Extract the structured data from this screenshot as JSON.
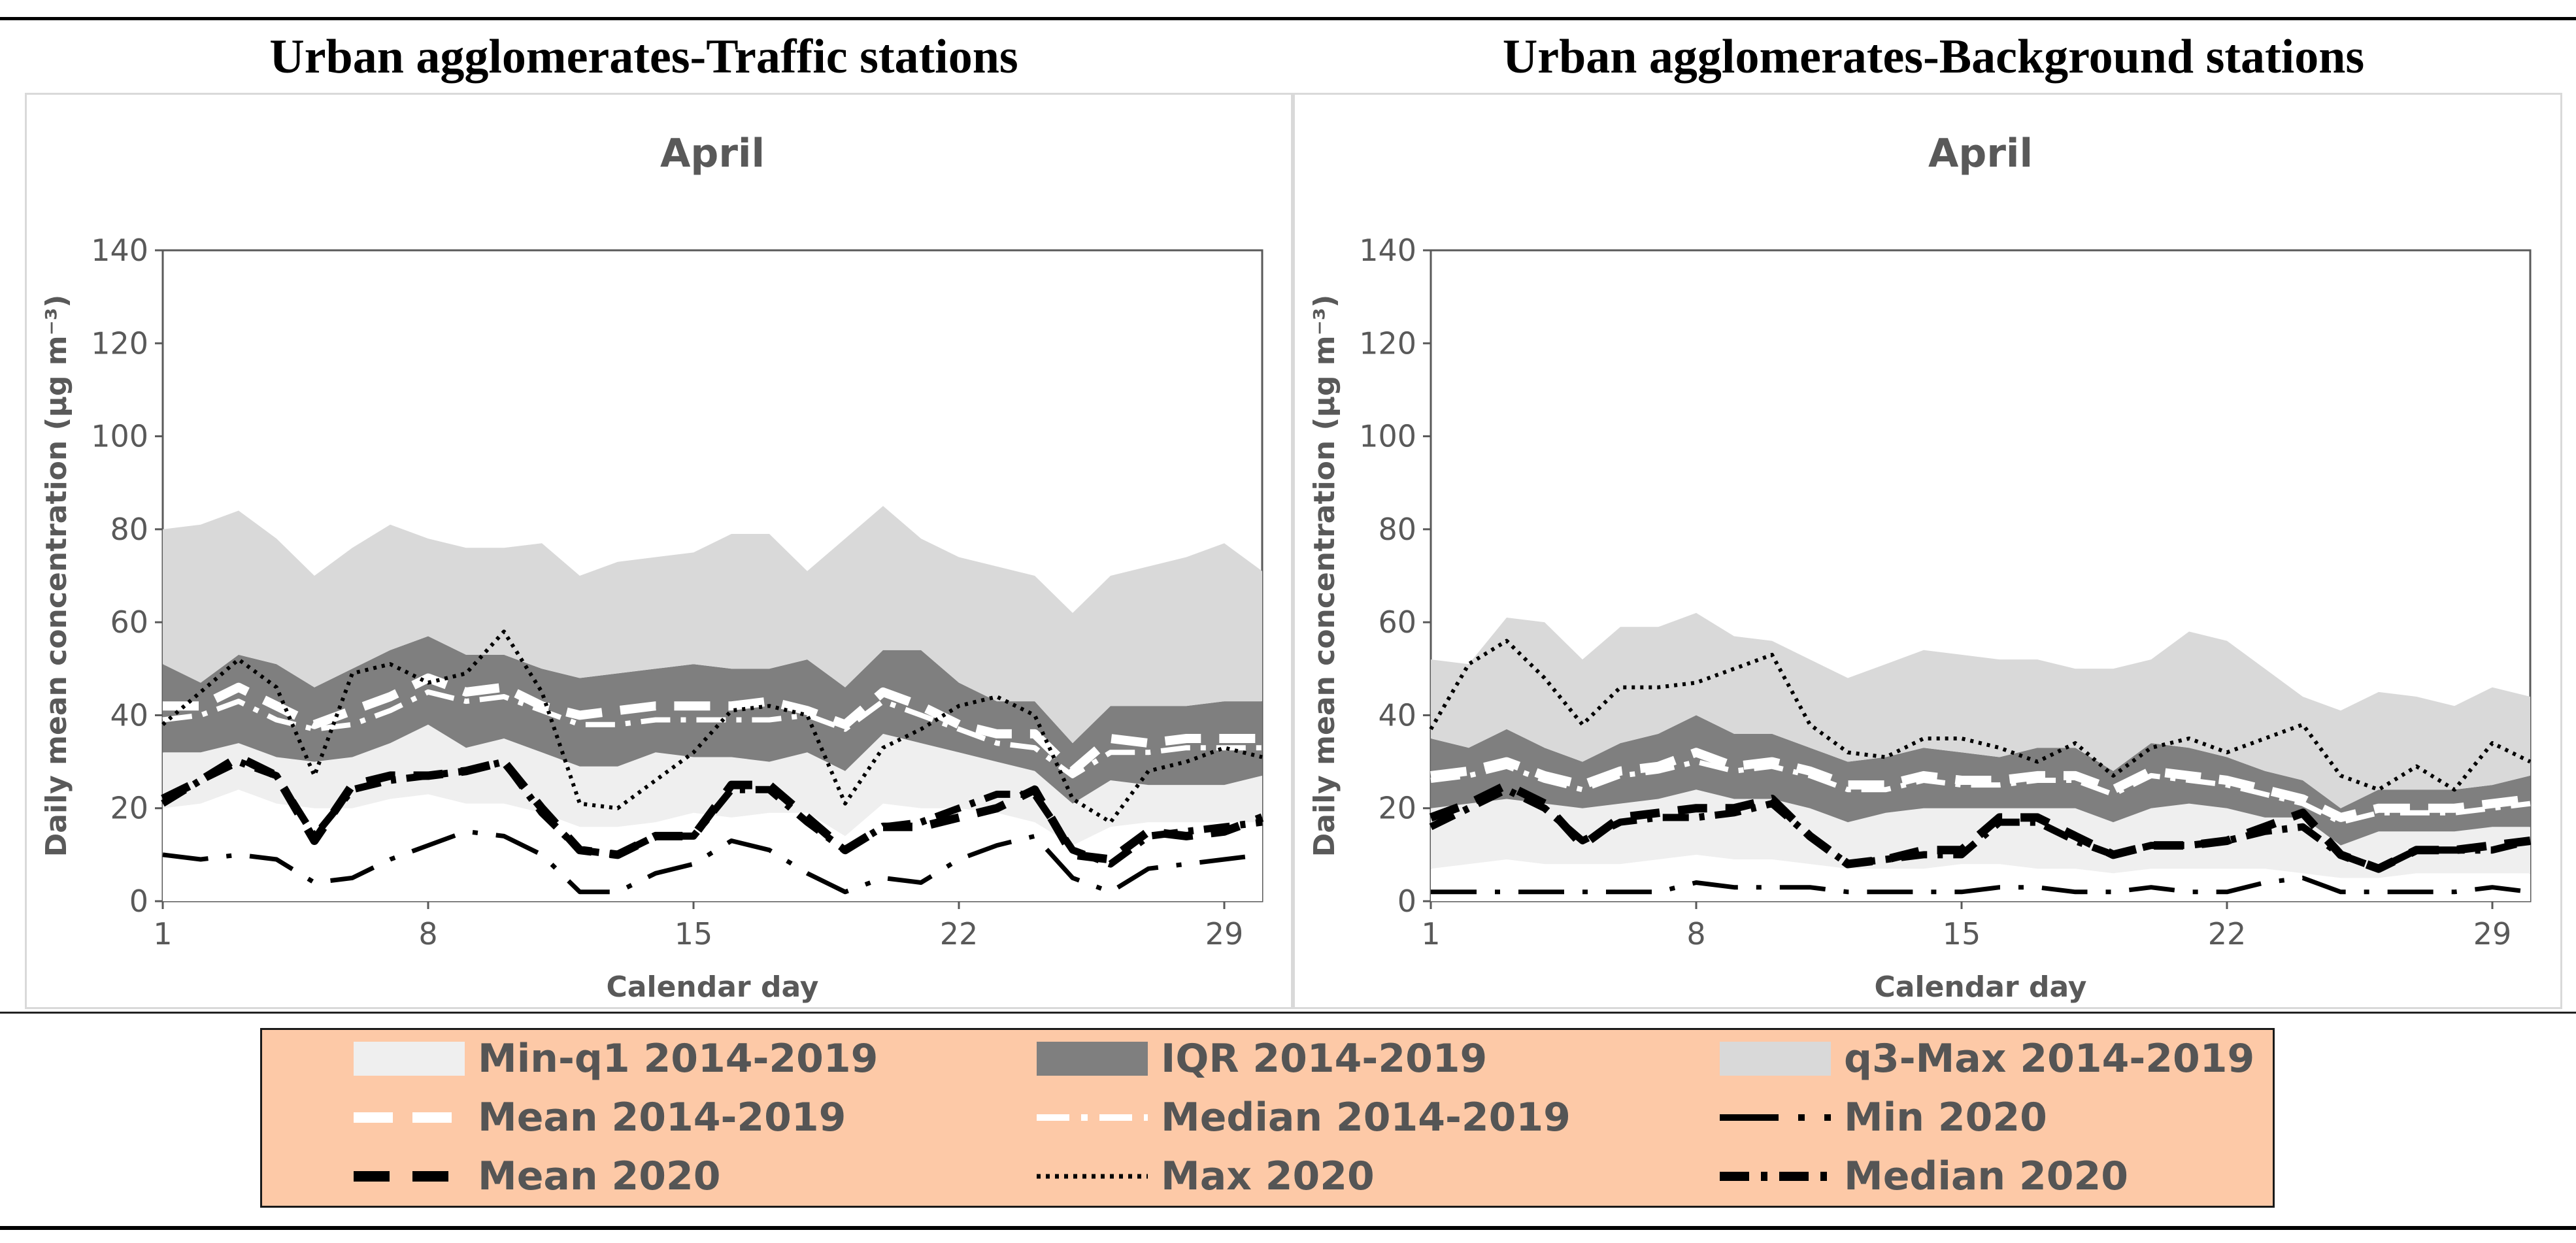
{
  "panels": [
    {
      "heading": "Urban agglomerates-Traffic stations"
    },
    {
      "heading": "Urban agglomerates-Background stations"
    }
  ],
  "colors": {
    "min_q1": "#efefef",
    "iqr": "#7f7f7f",
    "q3_max": "#d9d9d9",
    "mean_hist": "#ffffff",
    "median_hist": "#ffffff",
    "line_2020": "#000000",
    "legend_bg": "#fdc9a7",
    "text_gray": "#595959"
  },
  "legend": {
    "items": [
      {
        "key": "min_q1",
        "label": "Min-q1 2014-2019"
      },
      {
        "key": "iqr",
        "label": "IQR 2014-2019"
      },
      {
        "key": "q3_max",
        "label": "q3-Max 2014-2019"
      },
      {
        "key": "mean_hist",
        "label": "Mean 2014-2019"
      },
      {
        "key": "median_hist",
        "label": "Median 2014-2019"
      },
      {
        "key": "min_2020",
        "label": "Min 2020"
      },
      {
        "key": "mean_2020",
        "label": "Mean 2020"
      },
      {
        "key": "max_2020",
        "label": "Max 2020"
      },
      {
        "key": "median_2020",
        "label": "Median 2020"
      }
    ]
  },
  "chart_data": [
    {
      "type": "area",
      "title": "April",
      "xlabel": "Calendar day",
      "ylabel": "Daily mean concentration (µg m⁻³)",
      "ylim": [
        0,
        140
      ],
      "xlim": [
        1,
        30
      ],
      "yticks": [
        0,
        20,
        40,
        60,
        80,
        100,
        120,
        140
      ],
      "xticks": [
        1,
        8,
        15,
        22,
        29
      ],
      "x": [
        1,
        2,
        3,
        4,
        5,
        6,
        7,
        8,
        9,
        10,
        11,
        12,
        13,
        14,
        15,
        16,
        17,
        18,
        19,
        20,
        21,
        22,
        23,
        24,
        25,
        26,
        27,
        28,
        29,
        30
      ],
      "series": [
        {
          "name": "Min 2014-2019",
          "values": [
            20,
            21,
            24,
            21,
            20,
            20,
            22,
            23,
            21,
            21,
            19,
            16,
            16,
            17,
            19,
            18,
            19,
            19,
            14,
            21,
            20,
            20,
            19,
            17,
            12,
            16,
            17,
            17,
            17,
            17
          ]
        },
        {
          "name": "q1 2014-2019",
          "values": [
            32,
            32,
            34,
            31,
            30,
            31,
            34,
            38,
            33,
            35,
            32,
            29,
            29,
            32,
            31,
            31,
            30,
            32,
            28,
            36,
            34,
            32,
            30,
            28,
            21,
            26,
            25,
            25,
            25,
            27
          ]
        },
        {
          "name": "q3 2014-2019",
          "values": [
            51,
            47,
            53,
            51,
            46,
            50,
            54,
            57,
            53,
            53,
            50,
            48,
            49,
            50,
            51,
            50,
            50,
            52,
            46,
            54,
            54,
            47,
            43,
            43,
            34,
            42,
            42,
            42,
            43,
            43
          ]
        },
        {
          "name": "Max 2014-2019",
          "values": [
            80,
            81,
            84,
            78,
            70,
            76,
            81,
            78,
            76,
            76,
            77,
            70,
            73,
            74,
            75,
            79,
            79,
            71,
            78,
            85,
            78,
            74,
            72,
            70,
            62,
            70,
            72,
            74,
            77,
            71
          ]
        },
        {
          "name": "Mean 2014-2019",
          "values": [
            42,
            42,
            46,
            42,
            38,
            41,
            44,
            48,
            45,
            46,
            42,
            40,
            41,
            42,
            42,
            42,
            43,
            41,
            38,
            45,
            42,
            38,
            36,
            36,
            28,
            35,
            34,
            35,
            35,
            35
          ]
        },
        {
          "name": "Median 2014-2019",
          "values": [
            39,
            40,
            43,
            39,
            37,
            38,
            41,
            45,
            43,
            44,
            41,
            38,
            38,
            39,
            39,
            39,
            39,
            40,
            37,
            43,
            40,
            37,
            34,
            33,
            27,
            32,
            32,
            33,
            33,
            33
          ]
        },
        {
          "name": "Min 2020",
          "values": [
            10,
            9,
            10,
            9,
            4,
            5,
            9,
            12,
            15,
            14,
            10,
            2,
            2,
            6,
            8,
            13,
            11,
            6,
            2,
            5,
            4,
            9,
            12,
            14,
            5,
            2,
            7,
            8,
            9,
            10
          ]
        },
        {
          "name": "Mean 2020",
          "values": [
            22,
            26,
            31,
            27,
            13,
            25,
            27,
            27,
            28,
            30,
            20,
            11,
            10,
            14,
            14,
            25,
            25,
            18,
            11,
            16,
            16,
            18,
            20,
            24,
            10,
            9,
            15,
            14,
            15,
            18
          ]
        },
        {
          "name": "Max 2020",
          "values": [
            38,
            45,
            52,
            46,
            27,
            49,
            51,
            47,
            49,
            58,
            45,
            21,
            20,
            26,
            32,
            41,
            42,
            40,
            21,
            33,
            37,
            42,
            44,
            40,
            22,
            17,
            28,
            30,
            33,
            31
          ]
        },
        {
          "name": "Median 2020",
          "values": [
            21,
            26,
            30,
            27,
            14,
            24,
            26,
            27,
            28,
            30,
            19,
            11,
            10,
            14,
            14,
            24,
            24,
            17,
            11,
            16,
            17,
            20,
            23,
            23,
            11,
            8,
            14,
            15,
            16,
            17
          ]
        }
      ]
    },
    {
      "type": "area",
      "title": "April",
      "xlabel": "Calendar day",
      "ylabel": "Daily mean concentration (µg m⁻³)",
      "ylim": [
        0,
        140
      ],
      "xlim": [
        1,
        30
      ],
      "yticks": [
        0,
        20,
        40,
        60,
        80,
        100,
        120,
        140
      ],
      "xticks": [
        1,
        8,
        15,
        22,
        29
      ],
      "x": [
        1,
        2,
        3,
        4,
        5,
        6,
        7,
        8,
        9,
        10,
        11,
        12,
        13,
        14,
        15,
        16,
        17,
        18,
        19,
        20,
        21,
        22,
        23,
        24,
        25,
        26,
        27,
        28,
        29,
        30
      ],
      "series": [
        {
          "name": "Min 2014-2019",
          "values": [
            7,
            8,
            9,
            8,
            8,
            8,
            9,
            10,
            9,
            9,
            8,
            7,
            7,
            7,
            8,
            8,
            7,
            7,
            6,
            7,
            7,
            7,
            7,
            6,
            5,
            5,
            6,
            6,
            6,
            6
          ]
        },
        {
          "name": "q1 2014-2019",
          "values": [
            20,
            21,
            22,
            21,
            20,
            21,
            22,
            24,
            22,
            22,
            20,
            17,
            19,
            20,
            20,
            20,
            20,
            20,
            17,
            20,
            21,
            20,
            18,
            18,
            12,
            15,
            15,
            15,
            16,
            16
          ]
        },
        {
          "name": "q3 2014-2019",
          "values": [
            35,
            33,
            37,
            33,
            30,
            34,
            36,
            40,
            36,
            36,
            33,
            30,
            31,
            33,
            32,
            31,
            33,
            33,
            28,
            34,
            33,
            31,
            28,
            26,
            20,
            24,
            24,
            24,
            25,
            27
          ]
        },
        {
          "name": "Max 2014-2019",
          "values": [
            52,
            51,
            61,
            60,
            52,
            59,
            59,
            62,
            57,
            56,
            52,
            48,
            51,
            54,
            53,
            52,
            52,
            50,
            50,
            52,
            58,
            56,
            50,
            44,
            41,
            45,
            44,
            42,
            46,
            44
          ]
        },
        {
          "name": "Mean 2014-2019",
          "values": [
            27,
            28,
            30,
            27,
            25,
            28,
            29,
            32,
            29,
            30,
            28,
            25,
            25,
            27,
            26,
            26,
            27,
            27,
            24,
            28,
            27,
            26,
            24,
            22,
            18,
            20,
            20,
            20,
            21,
            22
          ]
        },
        {
          "name": "Median 2014-2019",
          "values": [
            26,
            27,
            29,
            26,
            24,
            27,
            28,
            30,
            28,
            29,
            27,
            24,
            24,
            26,
            25,
            25,
            26,
            26,
            23,
            27,
            26,
            25,
            23,
            21,
            17,
            19,
            19,
            19,
            20,
            21
          ]
        },
        {
          "name": "Min 2020",
          "values": [
            2,
            2,
            2,
            2,
            2,
            2,
            2,
            4,
            3,
            3,
            3,
            2,
            2,
            2,
            2,
            3,
            3,
            2,
            2,
            3,
            2,
            2,
            4,
            5,
            2,
            2,
            2,
            2,
            3,
            2
          ]
        },
        {
          "name": "Mean 2020",
          "values": [
            18,
            21,
            25,
            21,
            12,
            18,
            19,
            20,
            20,
            22,
            14,
            8,
            9,
            11,
            11,
            18,
            18,
            14,
            10,
            12,
            12,
            13,
            16,
            19,
            10,
            7,
            11,
            11,
            12,
            13
          ]
        },
        {
          "name": "Max 2020",
          "values": [
            37,
            51,
            56,
            48,
            38,
            46,
            46,
            47,
            50,
            53,
            38,
            32,
            31,
            35,
            35,
            33,
            30,
            34,
            27,
            33,
            35,
            32,
            35,
            38,
            27,
            24,
            29,
            24,
            34,
            30
          ]
        },
        {
          "name": "Median 2020",
          "values": [
            16,
            20,
            24,
            20,
            13,
            17,
            18,
            18,
            19,
            21,
            14,
            8,
            9,
            10,
            10,
            17,
            17,
            13,
            10,
            12,
            12,
            13,
            15,
            16,
            10,
            7,
            11,
            11,
            11,
            13
          ]
        }
      ]
    }
  ]
}
